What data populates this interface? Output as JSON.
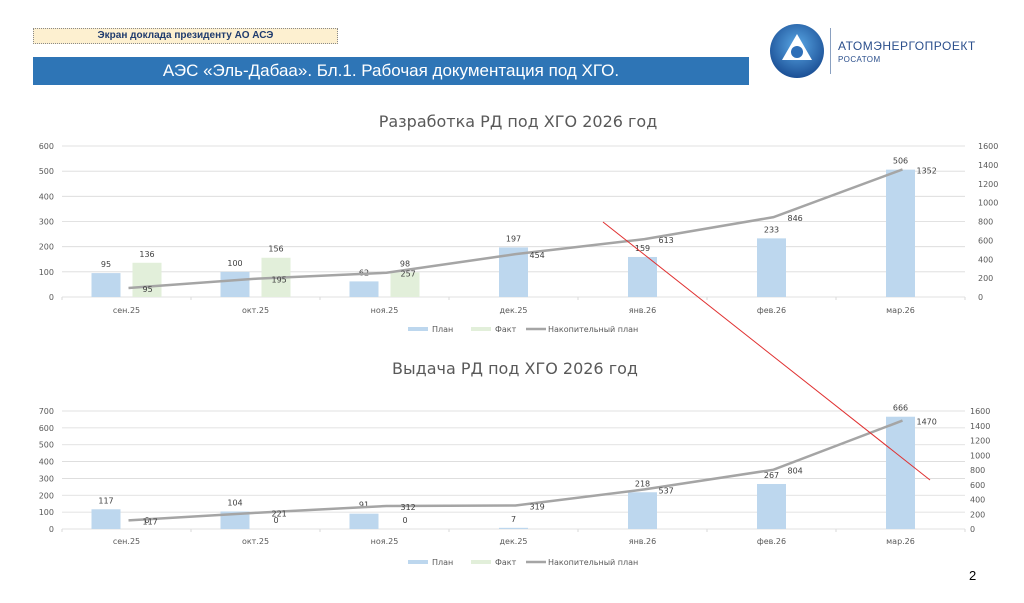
{
  "header": {
    "subtitle": "Экран доклада президенту АО АСЭ",
    "title": "АЭС «Эль-Дабаа». Бл.1. Рабочая документация под ХГО.",
    "logo_name": "АТОМЭНЕРГОПРОЕКТ",
    "logo_sub": "РОСАТОМ"
  },
  "page_number": "2",
  "colors": {
    "banner": "#2e75b6",
    "plan": "#bdd7ee",
    "fact": "#e2efda",
    "cumulative": "#a5a5a5",
    "annotation_line": "#e03030"
  },
  "chart_data": [
    {
      "type": "bar",
      "title": "Разработка РД под ХГО 2026 год",
      "categories": [
        "сен.25",
        "окт.25",
        "ноя.25",
        "дек.25",
        "янв.26",
        "фев.26",
        "мар.26"
      ],
      "series": [
        {
          "name": "План",
          "type": "bar",
          "axis": "left",
          "values": [
            95,
            100,
            62,
            197,
            159,
            233,
            506
          ]
        },
        {
          "name": "Факт",
          "type": "bar",
          "axis": "left",
          "values": [
            136,
            156,
            98,
            null,
            null,
            null,
            null
          ]
        },
        {
          "name": "Накопительный план",
          "type": "line",
          "axis": "right",
          "values": [
            95,
            195,
            257,
            454,
            613,
            846,
            1352
          ]
        }
      ],
      "ylim": [
        0,
        600
      ],
      "yticks": [
        0,
        100,
        200,
        300,
        400,
        500,
        600
      ],
      "y2lim": [
        0,
        1600
      ],
      "y2ticks": [
        0,
        200,
        400,
        600,
        800,
        1000,
        1200,
        1400,
        1600
      ],
      "grid": true,
      "legend": [
        "План",
        "Факт",
        "Накопительный план"
      ],
      "legend_position": "bottom"
    },
    {
      "type": "bar",
      "title": "Выдача РД под ХГО 2026 год",
      "categories": [
        "сен.25",
        "окт.25",
        "ноя.25",
        "дек.25",
        "янв.26",
        "фев.26",
        "мар.26"
      ],
      "series": [
        {
          "name": "План",
          "type": "bar",
          "axis": "left",
          "values": [
            117,
            104,
            91,
            7,
            218,
            267,
            666
          ]
        },
        {
          "name": "Факт",
          "type": "bar",
          "axis": "left",
          "values": [
            0,
            0,
            0,
            null,
            null,
            null,
            null
          ]
        },
        {
          "name": "Накопительный план",
          "type": "line",
          "axis": "right",
          "values": [
            117,
            221,
            312,
            319,
            537,
            804,
            1470
          ]
        }
      ],
      "ylim": [
        0,
        700
      ],
      "yticks": [
        0,
        100,
        200,
        300,
        400,
        500,
        600,
        700
      ],
      "y2lim": [
        0,
        1600
      ],
      "y2ticks": [
        0,
        200,
        400,
        600,
        800,
        1000,
        1200,
        1400,
        1600
      ],
      "grid": true,
      "legend": [
        "План",
        "Факт",
        "Накопительный план"
      ],
      "legend_position": "bottom"
    }
  ]
}
